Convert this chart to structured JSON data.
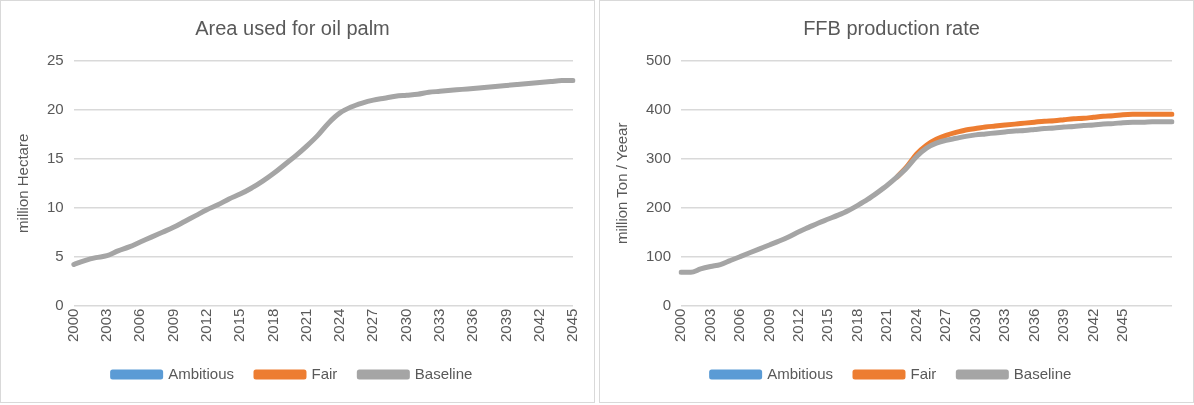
{
  "chart_data": [
    {
      "type": "line",
      "title": "Area used for oil palm",
      "ylabel": "million Hectare",
      "categories": [
        "2000",
        null,
        null,
        "2003",
        null,
        null,
        "2006",
        null,
        null,
        "2009",
        null,
        null,
        "2012",
        null,
        null,
        "2015",
        null,
        null,
        "2018",
        null,
        null,
        "2021",
        null,
        null,
        "2024",
        null,
        null,
        "2027",
        null,
        null,
        "2030",
        null,
        null,
        "2033",
        null,
        null,
        "2036",
        null,
        null,
        "2039",
        null,
        null,
        "2042",
        null,
        null,
        "2045"
      ],
      "series": [
        {
          "name": "Ambitious",
          "color": "#5b9bd5",
          "values": [
            null,
            null,
            null,
            null,
            null,
            null,
            null,
            null,
            null,
            null,
            null,
            null,
            null,
            null,
            null,
            null,
            null,
            null,
            null,
            null,
            null,
            null,
            null,
            null,
            null,
            null,
            null,
            null,
            null,
            null,
            null,
            null,
            null,
            null,
            null,
            null,
            null,
            null,
            null,
            null,
            null,
            null,
            null,
            null,
            null,
            null
          ]
        },
        {
          "name": "Fair",
          "color": "#ed7d31",
          "values": [
            null,
            null,
            null,
            null,
            null,
            null,
            null,
            null,
            null,
            null,
            null,
            null,
            null,
            null,
            null,
            null,
            null,
            null,
            null,
            null,
            null,
            null,
            null,
            null,
            null,
            null,
            null,
            null,
            null,
            null,
            null,
            null,
            null,
            null,
            null,
            null,
            null,
            null,
            null,
            null,
            null,
            null,
            null,
            null,
            null,
            null
          ]
        },
        {
          "name": "Baseline",
          "color": "#a5a5a5",
          "values": [
            4.2,
            4.6,
            4.9,
            5.1,
            5.6,
            6.0,
            6.5,
            7.0,
            7.5,
            8.0,
            8.6,
            9.2,
            9.8,
            10.3,
            10.9,
            11.4,
            12.0,
            12.7,
            13.5,
            14.4,
            15.3,
            16.3,
            17.4,
            18.7,
            19.7,
            20.3,
            20.7,
            21.0,
            21.2,
            21.4,
            21.5,
            21.6,
            21.8,
            21.9,
            22.0,
            22.1,
            22.2,
            22.3,
            22.4,
            22.5,
            22.6,
            22.7,
            22.8,
            22.9,
            23.0,
            23.0
          ]
        }
      ],
      "ylim": [
        0,
        25
      ],
      "yticks": [
        0,
        5,
        10,
        15,
        20,
        25
      ],
      "grid": "y",
      "legend": "bottom",
      "marker": "none",
      "line_style": "solid"
    },
    {
      "type": "line",
      "title": "FFB production rate",
      "ylabel": "million Ton / Yeear",
      "categories": [
        "2000",
        null,
        null,
        "2003",
        null,
        null,
        "2006",
        null,
        null,
        "2009",
        null,
        null,
        "2012",
        null,
        null,
        "2015",
        null,
        null,
        "2018",
        null,
        null,
        "2021",
        null,
        null,
        "2024",
        null,
        null,
        "2027",
        null,
        null,
        "2030",
        null,
        null,
        "2033",
        null,
        null,
        "2036",
        null,
        null,
        "2039",
        null,
        null,
        "2042",
        null,
        null,
        "2045",
        null,
        null,
        null,
        null,
        null
      ],
      "series": [
        {
          "name": "Ambitious",
          "color": "#5b9bd5",
          "values": [
            null,
            null,
            null,
            null,
            null,
            null,
            null,
            null,
            null,
            null,
            null,
            null,
            null,
            null,
            null,
            null,
            null,
            null,
            null,
            null,
            null,
            null,
            null,
            null,
            null,
            null,
            null,
            null,
            null,
            null,
            null,
            null,
            null,
            null,
            null,
            null,
            null,
            null,
            null,
            null,
            null,
            null,
            null,
            null,
            null,
            null,
            null,
            null,
            null,
            null,
            null
          ]
        },
        {
          "name": "Fair",
          "color": "#ed7d31",
          "values": [
            null,
            null,
            null,
            null,
            null,
            null,
            null,
            null,
            null,
            null,
            null,
            null,
            null,
            null,
            null,
            null,
            null,
            null,
            null,
            null,
            null,
            null,
            263,
            284,
            310,
            328,
            340,
            348,
            354,
            359,
            362,
            365,
            367,
            369,
            371,
            373,
            375,
            377,
            378,
            380,
            382,
            383,
            385,
            387,
            388,
            390,
            391,
            391,
            391,
            391,
            391
          ]
        },
        {
          "name": "Baseline",
          "color": "#a5a5a5",
          "values": [
            68,
            68,
            75,
            80,
            84,
            92,
            100,
            108,
            116,
            124,
            132,
            141,
            151,
            160,
            169,
            177,
            185,
            194,
            205,
            217,
            231,
            246,
            263,
            282,
            305,
            322,
            332,
            338,
            342,
            346,
            349,
            351,
            353,
            355,
            357,
            358,
            360,
            362,
            363,
            365,
            366,
            368,
            369,
            371,
            372,
            374,
            375,
            375,
            376,
            376,
            376
          ]
        }
      ],
      "ylim": [
        0,
        500
      ],
      "yticks": [
        0,
        100,
        200,
        300,
        400,
        500
      ],
      "grid": "y",
      "legend": "bottom",
      "marker": "none",
      "line_style": "solid"
    }
  ]
}
